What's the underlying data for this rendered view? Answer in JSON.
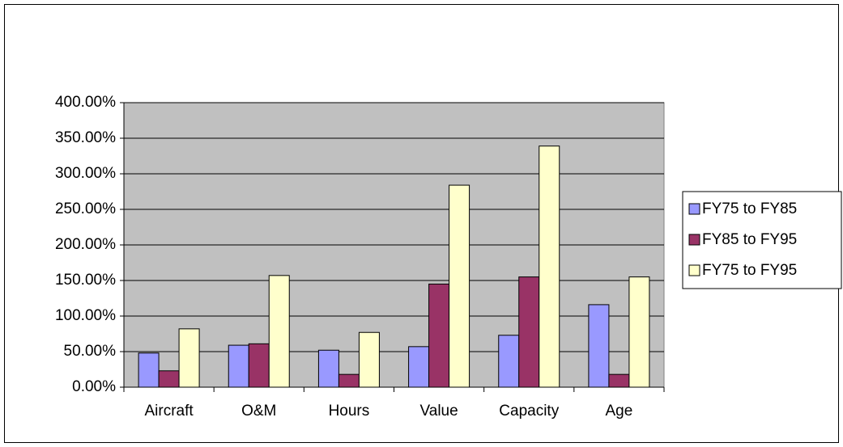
{
  "chart_data": {
    "type": "bar",
    "categories": [
      "Aircraft",
      "O&M",
      "Hours",
      "Value",
      "Capacity",
      "Age"
    ],
    "series": [
      {
        "name": "FY75 to FY85",
        "color": "#9999ff",
        "values": [
          48,
          59,
          52,
          57,
          73,
          116
        ]
      },
      {
        "name": "FY85 to FY95",
        "color": "#993366",
        "values": [
          23,
          61,
          18,
          145,
          155,
          18
        ]
      },
      {
        "name": "FY75 to FY95",
        "color": "#ffffcc",
        "values": [
          82,
          157,
          77,
          284,
          339,
          155
        ]
      }
    ],
    "ylim": [
      0,
      400
    ],
    "yticks": [
      {
        "value": 0,
        "label": "0.00%"
      },
      {
        "value": 50,
        "label": "50.00%"
      },
      {
        "value": 100,
        "label": "100.00%"
      },
      {
        "value": 150,
        "label": "150.00%"
      },
      {
        "value": 200,
        "label": "200.00%"
      },
      {
        "value": 250,
        "label": "250.00%"
      },
      {
        "value": 300,
        "label": "300.00%"
      },
      {
        "value": 350,
        "label": "350.00%"
      },
      {
        "value": 400,
        "label": "400.00%"
      }
    ],
    "grid": true,
    "legend": "right",
    "plot_background": "#c0c0c0"
  }
}
